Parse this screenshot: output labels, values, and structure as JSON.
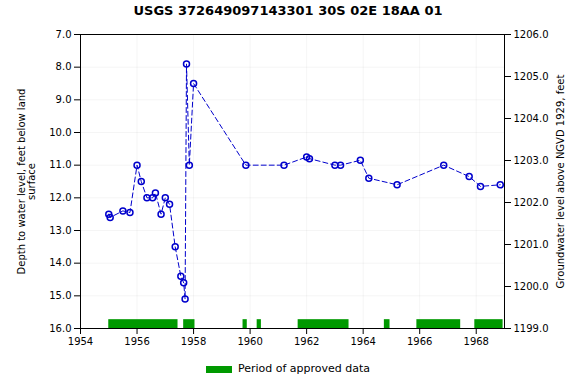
{
  "chart_data": {
    "type": "line",
    "title": "USGS 372649097143301 30S 02E 18AA  01",
    "ylabel": "Depth to water level, feet below land\nsurface",
    "y2label": "Groundwater level above NGVD 1929, feet",
    "x": [
      1955.0,
      1955.05,
      1955.5,
      1955.75,
      1956.0,
      1956.15,
      1956.35,
      1956.55,
      1956.65,
      1956.85,
      1957.0,
      1957.15,
      1957.35,
      1957.55,
      1957.65,
      1957.7,
      1957.75,
      1957.85,
      1958.0,
      1959.85,
      1961.2,
      1962.0,
      1962.1,
      1963.0,
      1963.2,
      1963.9,
      1964.2,
      1965.2,
      1966.85,
      1967.75,
      1968.15,
      1968.85
    ],
    "series": [
      {
        "color": "#0000cc",
        "marker": "circle",
        "line_style": "dashed",
        "values": [
          12.5,
          12.6,
          12.4,
          12.45,
          11.0,
          11.5,
          12.0,
          12.0,
          11.85,
          12.5,
          12.0,
          12.2,
          13.5,
          14.4,
          14.6,
          15.1,
          7.9,
          11.0,
          8.5,
          11.0,
          11.0,
          10.75,
          10.8,
          11.0,
          11.0,
          10.85,
          11.4,
          11.6,
          11.0,
          11.35,
          11.65,
          11.6
        ]
      },
      {
        "name": "Period of approved data",
        "type": "span",
        "color": "#009900",
        "values": [
          [
            1955.0,
            1957.45
          ],
          [
            1957.65,
            1958.05
          ],
          [
            1959.75,
            1959.9
          ],
          [
            1960.25,
            1960.4
          ],
          [
            1961.7,
            1963.5
          ],
          [
            1964.75,
            1964.95
          ],
          [
            1965.9,
            1967.45
          ],
          [
            1967.95,
            1968.95
          ]
        ]
      }
    ],
    "xlim": [
      1954,
      1969
    ],
    "xticks": [
      1954,
      1956,
      1958,
      1960,
      1962,
      1964,
      1966,
      1968
    ],
    "ylim": [
      16.0,
      7.0
    ],
    "yticks": [
      {
        "value": 7.0,
        "label": "7.0"
      },
      {
        "value": 8.0,
        "label": "8.0"
      },
      {
        "value": 9.0,
        "label": "9.0"
      },
      {
        "value": 10.0,
        "label": "10.0"
      },
      {
        "value": 11.0,
        "label": "11.0"
      },
      {
        "value": 12.0,
        "label": "12.0"
      },
      {
        "value": 13.0,
        "label": "13.0"
      },
      {
        "value": 14.0,
        "label": "14.0"
      },
      {
        "value": 15.0,
        "label": "15.0"
      },
      {
        "value": 16.0,
        "label": "16.0"
      }
    ],
    "y2lim": [
      1199.0,
      1206.0
    ],
    "y2ticks": [
      {
        "value": 1199.0,
        "label": "1199.0"
      },
      {
        "value": 1200.0,
        "label": "1200.0"
      },
      {
        "value": 1201.0,
        "label": "1201.0"
      },
      {
        "value": 1202.0,
        "label": "1202.0"
      },
      {
        "value": 1203.0,
        "label": "1203.0"
      },
      {
        "value": 1204.0,
        "label": "1204.0"
      },
      {
        "value": 1205.0,
        "label": "1205.0"
      },
      {
        "value": 1206.0,
        "label": "1206.0"
      }
    ],
    "grid": true,
    "legend": "bottom"
  }
}
